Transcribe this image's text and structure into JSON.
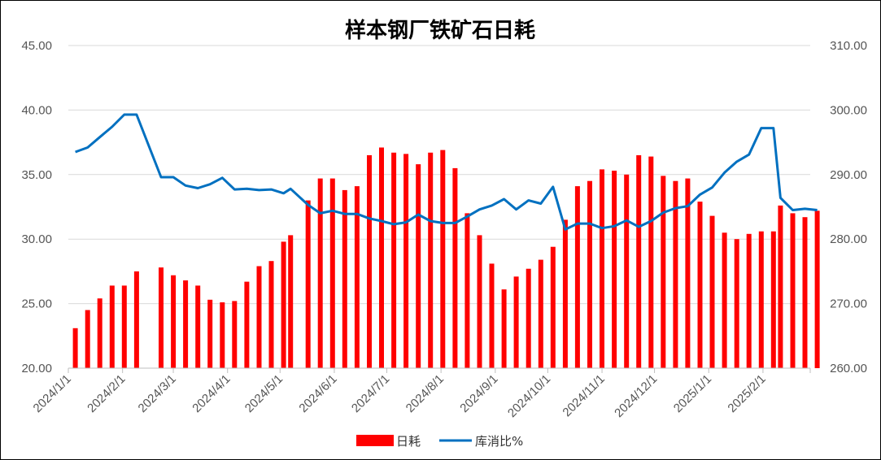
{
  "chart_data": {
    "type": "bar+line",
    "title": "样本钢厂铁矿石日耗",
    "x_ticks": [
      "2024/1/1",
      "2024/2/1",
      "2024/3/1",
      "2024/4/1",
      "2024/5/1",
      "2024/6/1",
      "2024/7/1",
      "2024/8/1",
      "2024/9/1",
      "2024/10/1",
      "2024/11/1",
      "2024/12/1",
      "2025/1/1",
      "2025/2/1"
    ],
    "y_left": {
      "min": 20,
      "max": 45,
      "step": 5,
      "ticks": [
        "20.00",
        "25.00",
        "30.00",
        "35.00",
        "40.00",
        "45.00"
      ]
    },
    "y_right": {
      "min": 260,
      "max": 310,
      "step": 10,
      "ticks": [
        "260.00",
        "270.00",
        "280.00",
        "290.00",
        "300.00",
        "310.00"
      ]
    },
    "x_range": [
      "2024-01-01",
      "2025-02-28"
    ],
    "series": [
      {
        "name": "日耗",
        "type": "bar",
        "axis": "left",
        "color": "#ff0000",
        "points": [
          [
            "2024-01-05",
            23.1
          ],
          [
            "2024-01-12",
            24.5
          ],
          [
            "2024-01-19",
            25.4
          ],
          [
            "2024-01-26",
            26.4
          ],
          [
            "2024-02-02",
            26.4
          ],
          [
            "2024-02-09",
            27.5
          ],
          [
            "2024-02-23",
            27.8
          ],
          [
            "2024-03-01",
            27.2
          ],
          [
            "2024-03-08",
            26.8
          ],
          [
            "2024-03-15",
            26.4
          ],
          [
            "2024-03-22",
            25.3
          ],
          [
            "2024-03-29",
            25.1
          ],
          [
            "2024-04-05",
            25.2
          ],
          [
            "2024-04-12",
            26.7
          ],
          [
            "2024-04-19",
            27.9
          ],
          [
            "2024-04-26",
            28.3
          ],
          [
            "2024-05-03",
            29.8
          ],
          [
            "2024-05-07",
            30.3
          ],
          [
            "2024-05-17",
            33.0
          ],
          [
            "2024-05-24",
            34.7
          ],
          [
            "2024-05-31",
            34.7
          ],
          [
            "2024-06-07",
            33.8
          ],
          [
            "2024-06-14",
            34.1
          ],
          [
            "2024-06-21",
            36.5
          ],
          [
            "2024-06-28",
            37.1
          ],
          [
            "2024-07-05",
            36.7
          ],
          [
            "2024-07-12",
            36.6
          ],
          [
            "2024-07-19",
            35.8
          ],
          [
            "2024-07-26",
            36.7
          ],
          [
            "2024-08-02",
            36.9
          ],
          [
            "2024-08-09",
            35.5
          ],
          [
            "2024-08-16",
            32.0
          ],
          [
            "2024-08-23",
            30.3
          ],
          [
            "2024-08-30",
            28.1
          ],
          [
            "2024-09-06",
            26.1
          ],
          [
            "2024-09-13",
            27.1
          ],
          [
            "2024-09-20",
            27.7
          ],
          [
            "2024-09-27",
            28.4
          ],
          [
            "2024-10-04",
            29.4
          ],
          [
            "2024-10-11",
            31.5
          ],
          [
            "2024-10-18",
            34.1
          ],
          [
            "2024-10-25",
            34.5
          ],
          [
            "2024-11-01",
            35.4
          ],
          [
            "2024-11-08",
            35.3
          ],
          [
            "2024-11-15",
            35.0
          ],
          [
            "2024-11-22",
            36.5
          ],
          [
            "2024-11-29",
            36.4
          ],
          [
            "2024-12-06",
            34.9
          ],
          [
            "2024-12-13",
            34.5
          ],
          [
            "2024-12-20",
            34.7
          ],
          [
            "2024-12-27",
            32.9
          ],
          [
            "2025-01-03",
            31.8
          ],
          [
            "2025-01-10",
            30.5
          ],
          [
            "2025-01-17",
            30.0
          ],
          [
            "2025-01-24",
            30.4
          ],
          [
            "2025-01-31",
            30.6
          ],
          [
            "2025-02-07",
            30.6
          ],
          [
            "2025-02-11",
            32.6
          ],
          [
            "2025-02-18",
            32.0
          ],
          [
            "2025-02-25",
            31.7
          ],
          [
            "2025-03-04",
            32.2
          ]
        ]
      },
      {
        "name": "库消比%",
        "type": "line",
        "axis": "right",
        "color": "#0070c0",
        "points": [
          [
            "2024-01-05",
            293.5
          ],
          [
            "2024-01-12",
            294.2
          ],
          [
            "2024-01-19",
            295.8
          ],
          [
            "2024-01-26",
            297.4
          ],
          [
            "2024-02-02",
            299.3
          ],
          [
            "2024-02-09",
            299.3
          ],
          [
            "2024-02-23",
            289.6
          ],
          [
            "2024-03-01",
            289.6
          ],
          [
            "2024-03-08",
            288.3
          ],
          [
            "2024-03-15",
            287.9
          ],
          [
            "2024-03-22",
            288.5
          ],
          [
            "2024-03-29",
            289.5
          ],
          [
            "2024-04-05",
            287.7
          ],
          [
            "2024-04-12",
            287.8
          ],
          [
            "2024-04-19",
            287.6
          ],
          [
            "2024-04-26",
            287.7
          ],
          [
            "2024-05-03",
            287.1
          ],
          [
            "2024-05-07",
            287.8
          ],
          [
            "2024-05-17",
            285.3
          ],
          [
            "2024-05-24",
            284.0
          ],
          [
            "2024-05-31",
            284.4
          ],
          [
            "2024-06-07",
            283.9
          ],
          [
            "2024-06-14",
            283.9
          ],
          [
            "2024-06-21",
            283.2
          ],
          [
            "2024-06-28",
            282.8
          ],
          [
            "2024-07-05",
            282.3
          ],
          [
            "2024-07-12",
            282.6
          ],
          [
            "2024-07-19",
            283.8
          ],
          [
            "2024-07-26",
            282.8
          ],
          [
            "2024-08-02",
            282.5
          ],
          [
            "2024-08-09",
            282.5
          ],
          [
            "2024-08-16",
            283.5
          ],
          [
            "2024-08-23",
            284.6
          ],
          [
            "2024-08-30",
            285.2
          ],
          [
            "2024-09-06",
            286.2
          ],
          [
            "2024-09-13",
            284.6
          ],
          [
            "2024-09-20",
            286.0
          ],
          [
            "2024-09-27",
            285.5
          ],
          [
            "2024-10-04",
            288.1
          ],
          [
            "2024-10-11",
            281.5
          ],
          [
            "2024-10-18",
            282.4
          ],
          [
            "2024-10-25",
            282.4
          ],
          [
            "2024-11-01",
            281.7
          ],
          [
            "2024-11-08",
            282.0
          ],
          [
            "2024-11-15",
            282.9
          ],
          [
            "2024-11-22",
            281.9
          ],
          [
            "2024-11-29",
            282.8
          ],
          [
            "2024-12-06",
            284.1
          ],
          [
            "2024-12-13",
            284.8
          ],
          [
            "2024-12-20",
            285.1
          ],
          [
            "2024-12-27",
            286.9
          ],
          [
            "2025-01-03",
            288.0
          ],
          [
            "2025-01-10",
            290.3
          ],
          [
            "2025-01-17",
            292.0
          ],
          [
            "2025-01-24",
            293.1
          ],
          [
            "2025-01-31",
            297.2
          ],
          [
            "2025-02-07",
            297.2
          ],
          [
            "2025-02-11",
            286.4
          ],
          [
            "2025-02-18",
            284.5
          ],
          [
            "2025-02-25",
            284.7
          ],
          [
            "2025-03-04",
            284.5
          ]
        ]
      }
    ],
    "legend": {
      "position": "bottom"
    },
    "grid": {
      "horizontal": true,
      "vertical": false
    }
  }
}
